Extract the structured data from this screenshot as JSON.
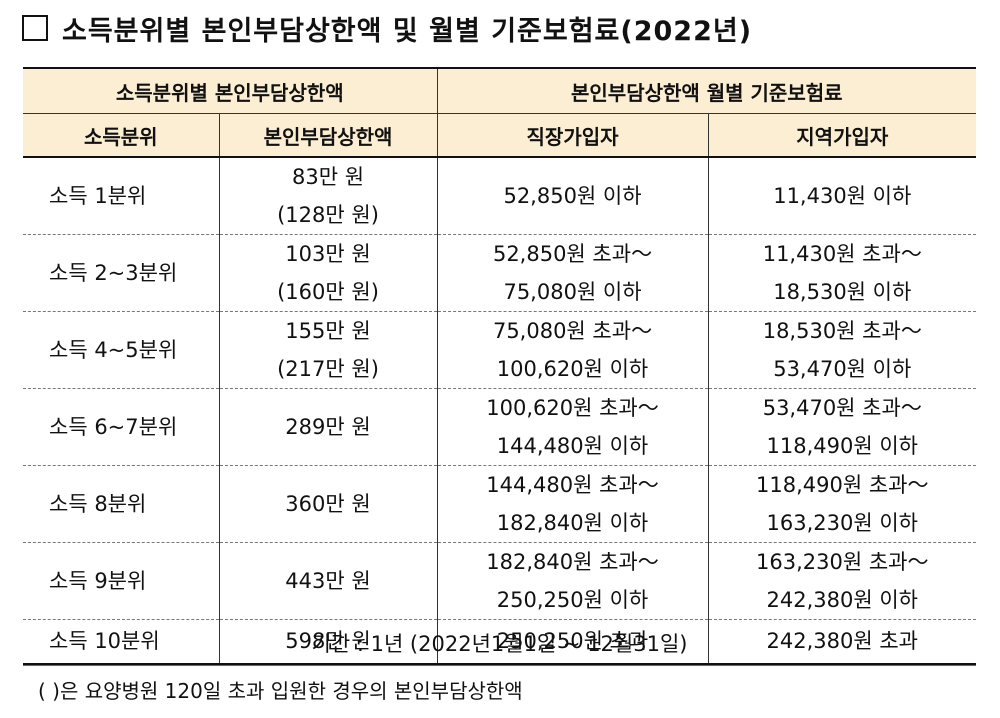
{
  "title": "소득분위별 본인부담상한액 및 월별 기준보험료(2022년)",
  "header": {
    "group_left": "소득분위별  본인부담상한액",
    "group_right": "본인부담상한액 월별 기준보험료",
    "col_bracket": "소득분위",
    "col_cap": "본인부담상한액",
    "col_employee": "직장가입자",
    "col_regional": "지역가입자"
  },
  "rows": [
    {
      "bracket": "소득 1분위",
      "cap": "83만 원",
      "cap_note": "(128만 원)",
      "employee": [
        "52,850원 이하"
      ],
      "regional": [
        "11,430원 이하"
      ]
    },
    {
      "bracket": "소득 2~3분위",
      "cap": "103만 원",
      "cap_note": "(160만 원)",
      "employee": [
        "52,850원 초과～",
        "75,080원 이하"
      ],
      "regional": [
        "11,430원 초과～",
        "18,530원 이하"
      ]
    },
    {
      "bracket": "소득 4~5분위",
      "cap": "155만 원",
      "cap_note": "(217만 원)",
      "employee": [
        "75,080원 초과～",
        "100,620원 이하"
      ],
      "regional": [
        "18,530원 초과～",
        "53,470원 이하"
      ]
    },
    {
      "bracket": "소득 6~7분위",
      "cap": "289만 원",
      "cap_note": "",
      "employee": [
        "100,620원 초과～",
        "144,480원 이하"
      ],
      "regional": [
        "53,470원 초과～",
        "118,490원 이하"
      ]
    },
    {
      "bracket": "소득 8분위",
      "cap": "360만 원",
      "cap_note": "",
      "employee": [
        "144,480원 초과～",
        "182,840원 이하"
      ],
      "regional": [
        "118,490원 초과～",
        "163,230원 이하"
      ]
    },
    {
      "bracket": "소득 9분위",
      "cap": "443만 원",
      "cap_note": "",
      "employee": [
        "182,840원 초과～",
        "250,250원 이하"
      ],
      "regional": [
        "163,230원 초과～",
        "242,380원 이하"
      ]
    },
    {
      "bracket": "소득 10분위",
      "cap": "598만 원",
      "cap_note": "",
      "employee": [
        "250,250원 초과"
      ],
      "regional": [
        "242,380원 초과"
      ]
    }
  ],
  "period": "기간 : 1년 (2022년1월1일 ~ 12월31일)",
  "footnote": "(     )은 요양병원 120일 초과 입원한 경우의 본인부담상한액"
}
